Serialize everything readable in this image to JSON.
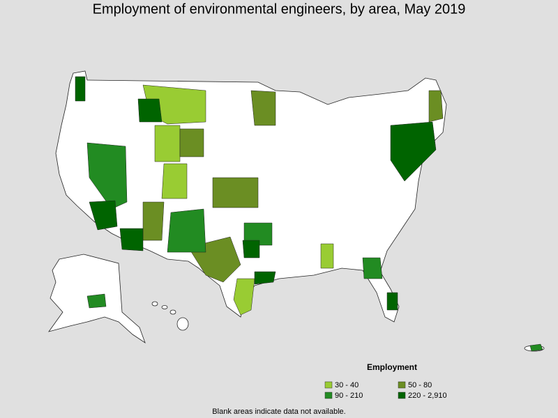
{
  "title": "Employment of environmental engineers, by area, May 2019",
  "legend": {
    "title": "Employment",
    "items": [
      {
        "label": "30 - 40",
        "color": "#99cc33"
      },
      {
        "label": "50 - 80",
        "color": "#6b8e23"
      },
      {
        "label": "90 - 210",
        "color": "#228b22"
      },
      {
        "label": "220 - 2,910",
        "color": "#006400"
      }
    ]
  },
  "note": "Blank areas indicate data not available."
}
